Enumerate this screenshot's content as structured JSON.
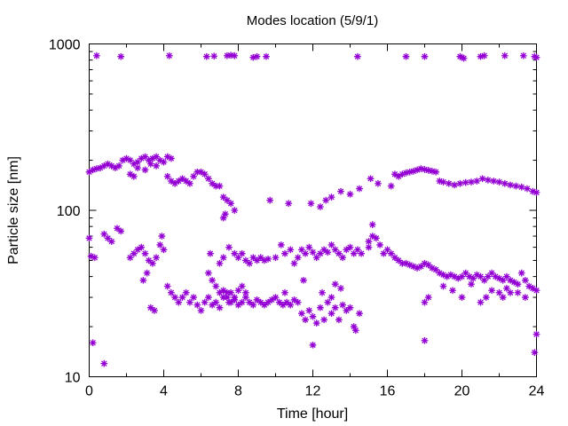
{
  "chart_data": {
    "type": "scatter",
    "title": "Modes location (5/9/1)",
    "xlabel": "Time [hour]",
    "ylabel": "Particle size [nm]",
    "xlim": [
      0,
      24
    ],
    "ylim": [
      10,
      1000
    ],
    "yscale": "log",
    "grid": false,
    "legend": "none",
    "marker": "star",
    "color": "#9400D3",
    "x_ticks": [
      0,
      4,
      8,
      12,
      16,
      20,
      24
    ],
    "x_tick_labels": [
      "0",
      "4",
      "8",
      "12",
      "16",
      "20",
      "24"
    ],
    "x_minor_ticks": [
      2,
      6,
      10,
      14,
      18,
      22
    ],
    "y_ticks": [
      10,
      100,
      1000
    ],
    "y_tick_labels": [
      "10",
      "100",
      "1000"
    ],
    "series": [
      {
        "points": [
          [
            0.4,
            850
          ],
          [
            1.7,
            840
          ],
          [
            4.3,
            850
          ],
          [
            6.3,
            840
          ],
          [
            6.7,
            845
          ],
          [
            7.4,
            850
          ],
          [
            7.6,
            855
          ],
          [
            7.8,
            850
          ],
          [
            8.8,
            830
          ],
          [
            9.0,
            840
          ],
          [
            9.5,
            840
          ],
          [
            14.4,
            840
          ],
          [
            17.0,
            840
          ],
          [
            18.0,
            840
          ],
          [
            19.9,
            840
          ],
          [
            20.0,
            830
          ],
          [
            20.1,
            820
          ],
          [
            21.0,
            840
          ],
          [
            21.2,
            850
          ],
          [
            22.3,
            850
          ],
          [
            23.3,
            850
          ],
          [
            23.9,
            840
          ],
          [
            24.0,
            830
          ],
          [
            0.0,
            170
          ],
          [
            0.2,
            175
          ],
          [
            0.4,
            178
          ],
          [
            0.6,
            180
          ],
          [
            0.8,
            185
          ],
          [
            1.0,
            190
          ],
          [
            1.2,
            185
          ],
          [
            1.4,
            180
          ],
          [
            1.6,
            185
          ],
          [
            1.8,
            200
          ],
          [
            2.0,
            205
          ],
          [
            2.2,
            200
          ],
          [
            2.4,
            190
          ],
          [
            2.6,
            195
          ],
          [
            2.8,
            205
          ],
          [
            3.0,
            210
          ],
          [
            3.2,
            200
          ],
          [
            3.4,
            205
          ],
          [
            3.6,
            210
          ],
          [
            3.8,
            200
          ],
          [
            4.0,
            195
          ],
          [
            4.2,
            210
          ],
          [
            4.4,
            205
          ],
          [
            2.2,
            165
          ],
          [
            2.4,
            160
          ],
          [
            2.6,
            180
          ],
          [
            3.0,
            175
          ],
          [
            3.3,
            190
          ],
          [
            3.6,
            185
          ],
          [
            4.2,
            160
          ],
          [
            4.4,
            150
          ],
          [
            4.6,
            145
          ],
          [
            4.8,
            150
          ],
          [
            5.0,
            155
          ],
          [
            5.2,
            150
          ],
          [
            5.4,
            145
          ],
          [
            5.6,
            160
          ],
          [
            5.8,
            170
          ],
          [
            6.0,
            170
          ],
          [
            6.2,
            165
          ],
          [
            6.4,
            155
          ],
          [
            6.6,
            145
          ],
          [
            6.8,
            140
          ],
          [
            7.0,
            140
          ],
          [
            7.2,
            120
          ],
          [
            7.4,
            115
          ],
          [
            7.6,
            110
          ],
          [
            7.8,
            100
          ],
          [
            7.3,
            95
          ],
          [
            7.2,
            90
          ],
          [
            9.7,
            115
          ],
          [
            10.7,
            110
          ],
          [
            11.9,
            110
          ],
          [
            12.4,
            105
          ],
          [
            12.7,
            115
          ],
          [
            13.0,
            120
          ],
          [
            13.5,
            130
          ],
          [
            14.0,
            125
          ],
          [
            14.5,
            135
          ],
          [
            15.1,
            155
          ],
          [
            15.5,
            145
          ],
          [
            16.2,
            140
          ],
          [
            16.4,
            165
          ],
          [
            16.6,
            160
          ],
          [
            16.8,
            165
          ],
          [
            17.0,
            168
          ],
          [
            17.2,
            170
          ],
          [
            17.4,
            172
          ],
          [
            17.6,
            175
          ],
          [
            17.8,
            178
          ],
          [
            18.0,
            176
          ],
          [
            18.2,
            174
          ],
          [
            18.4,
            172
          ],
          [
            18.6,
            170
          ],
          [
            18.8,
            150
          ],
          [
            19.0,
            148
          ],
          [
            19.3,
            145
          ],
          [
            19.6,
            142
          ],
          [
            19.9,
            145
          ],
          [
            20.2,
            147
          ],
          [
            20.5,
            148
          ],
          [
            20.8,
            150
          ],
          [
            21.1,
            155
          ],
          [
            21.4,
            152
          ],
          [
            21.7,
            150
          ],
          [
            22.0,
            148
          ],
          [
            22.3,
            145
          ],
          [
            22.6,
            142
          ],
          [
            22.9,
            140
          ],
          [
            23.2,
            138
          ],
          [
            23.5,
            135
          ],
          [
            23.8,
            130
          ],
          [
            24.0,
            128
          ],
          [
            0.0,
            68
          ],
          [
            0.1,
            53
          ],
          [
            0.3,
            52
          ],
          [
            0.8,
            72
          ],
          [
            1.0,
            68
          ],
          [
            1.2,
            65
          ],
          [
            1.5,
            78
          ],
          [
            1.7,
            75
          ],
          [
            2.2,
            52
          ],
          [
            2.4,
            55
          ],
          [
            2.6,
            58
          ],
          [
            2.8,
            60
          ],
          [
            3.0,
            55
          ],
          [
            3.2,
            50
          ],
          [
            3.4,
            48
          ],
          [
            3.6,
            52
          ],
          [
            3.8,
            62
          ],
          [
            3.9,
            70
          ],
          [
            4.0,
            58
          ],
          [
            3.1,
            42
          ],
          [
            2.9,
            38
          ],
          [
            3.3,
            26
          ],
          [
            3.5,
            25
          ],
          [
            4.2,
            35
          ],
          [
            4.4,
            32
          ],
          [
            4.6,
            30
          ],
          [
            4.8,
            28
          ],
          [
            5.0,
            30
          ],
          [
            5.2,
            32
          ],
          [
            5.4,
            28
          ],
          [
            5.6,
            30
          ],
          [
            5.8,
            27
          ],
          [
            6.0,
            25
          ],
          [
            6.2,
            28
          ],
          [
            6.4,
            30
          ],
          [
            6.6,
            27
          ],
          [
            6.8,
            28
          ],
          [
            7.0,
            26
          ],
          [
            7.2,
            30
          ],
          [
            7.4,
            32
          ],
          [
            7.6,
            28
          ],
          [
            7.8,
            29
          ],
          [
            8.0,
            27
          ],
          [
            8.2,
            28
          ],
          [
            8.4,
            30
          ],
          [
            8.6,
            28
          ],
          [
            8.8,
            27
          ],
          [
            9.0,
            29
          ],
          [
            9.2,
            28
          ],
          [
            9.4,
            27
          ],
          [
            9.6,
            28
          ],
          [
            9.8,
            29
          ],
          [
            10.0,
            30
          ],
          [
            10.2,
            28
          ],
          [
            10.4,
            27
          ],
          [
            10.6,
            28
          ],
          [
            10.8,
            27
          ],
          [
            11.0,
            29
          ],
          [
            11.2,
            28
          ],
          [
            11.4,
            24
          ],
          [
            11.6,
            22
          ],
          [
            11.8,
            25
          ],
          [
            12.0,
            23
          ],
          [
            12.2,
            21
          ],
          [
            12.4,
            26
          ],
          [
            12.6,
            22
          ],
          [
            12.8,
            28
          ],
          [
            13.0,
            24
          ],
          [
            13.2,
            26
          ],
          [
            13.4,
            22
          ],
          [
            13.6,
            27
          ],
          [
            13.8,
            25
          ],
          [
            14.0,
            26
          ],
          [
            14.2,
            20
          ],
          [
            14.5,
            24
          ],
          [
            14.3,
            19
          ],
          [
            12.0,
            15.5
          ],
          [
            6.4,
            42
          ],
          [
            6.6,
            38
          ],
          [
            6.8,
            35
          ],
          [
            7.0,
            32
          ],
          [
            7.2,
            33
          ],
          [
            7.4,
            30
          ],
          [
            7.6,
            32
          ],
          [
            7.8,
            30
          ],
          [
            8.0,
            33
          ],
          [
            8.2,
            35
          ],
          [
            8.4,
            32
          ],
          [
            7.5,
            28
          ],
          [
            10.5,
            32
          ],
          [
            11.5,
            38
          ],
          [
            12.5,
            32
          ],
          [
            13.0,
            30
          ],
          [
            13.2,
            36
          ],
          [
            13.5,
            34
          ],
          [
            6.5,
            55
          ],
          [
            7.0,
            48
          ],
          [
            7.2,
            52
          ],
          [
            7.5,
            60
          ],
          [
            7.8,
            55
          ],
          [
            8.0,
            52
          ],
          [
            8.2,
            55
          ],
          [
            8.4,
            50
          ],
          [
            8.6,
            48
          ],
          [
            8.8,
            52
          ],
          [
            9.0,
            50
          ],
          [
            9.2,
            52
          ],
          [
            9.4,
            50
          ],
          [
            9.6,
            51
          ],
          [
            10.0,
            52
          ],
          [
            10.3,
            62
          ],
          [
            10.5,
            55
          ],
          [
            10.8,
            58
          ],
          [
            11.0,
            48
          ],
          [
            11.2,
            52
          ],
          [
            11.4,
            58
          ],
          [
            11.6,
            55
          ],
          [
            11.8,
            60
          ],
          [
            12.0,
            56
          ],
          [
            12.2,
            52
          ],
          [
            12.4,
            55
          ],
          [
            12.6,
            58
          ],
          [
            12.8,
            56
          ],
          [
            13.0,
            62
          ],
          [
            13.2,
            58
          ],
          [
            13.4,
            55
          ],
          [
            13.6,
            52
          ],
          [
            13.8,
            58
          ],
          [
            14.0,
            60
          ],
          [
            14.2,
            55
          ],
          [
            14.4,
            58
          ],
          [
            14.6,
            55
          ],
          [
            15.0,
            65
          ],
          [
            15.2,
            70
          ],
          [
            15.4,
            68
          ],
          [
            15.6,
            62
          ],
          [
            15.8,
            55
          ],
          [
            15.0,
            60
          ],
          [
            15.2,
            82
          ],
          [
            16.0,
            58
          ],
          [
            16.2,
            55
          ],
          [
            16.4,
            52
          ],
          [
            16.6,
            50
          ],
          [
            16.8,
            48
          ],
          [
            17.0,
            48
          ],
          [
            17.2,
            47
          ],
          [
            17.4,
            46
          ],
          [
            17.6,
            45
          ],
          [
            17.8,
            46
          ],
          [
            18.0,
            48
          ],
          [
            18.2,
            47
          ],
          [
            18.4,
            45
          ],
          [
            18.6,
            44
          ],
          [
            18.8,
            42
          ],
          [
            19.0,
            41
          ],
          [
            19.2,
            40
          ],
          [
            19.4,
            41
          ],
          [
            19.6,
            40
          ],
          [
            19.8,
            39
          ],
          [
            20.0,
            40
          ],
          [
            20.2,
            42
          ],
          [
            20.4,
            40
          ],
          [
            20.6,
            39
          ],
          [
            20.8,
            41
          ],
          [
            21.0,
            40
          ],
          [
            21.2,
            38
          ],
          [
            21.4,
            40
          ],
          [
            21.6,
            42
          ],
          [
            21.8,
            40
          ],
          [
            22.0,
            39
          ],
          [
            22.2,
            38
          ],
          [
            22.4,
            40
          ],
          [
            22.6,
            38
          ],
          [
            22.8,
            37
          ],
          [
            23.0,
            36
          ],
          [
            23.2,
            42
          ],
          [
            23.4,
            38
          ],
          [
            23.6,
            35
          ],
          [
            23.8,
            34
          ],
          [
            24.0,
            33
          ],
          [
            18.0,
            28
          ],
          [
            18.2,
            30
          ],
          [
            19.0,
            35
          ],
          [
            19.5,
            33
          ],
          [
            20.0,
            30
          ],
          [
            20.5,
            36
          ],
          [
            21.0,
            28
          ],
          [
            21.3,
            30
          ],
          [
            21.6,
            33
          ],
          [
            22.0,
            32
          ],
          [
            22.2,
            30
          ],
          [
            22.4,
            34
          ],
          [
            22.6,
            32
          ],
          [
            23.0,
            32
          ],
          [
            23.4,
            30
          ],
          [
            0.2,
            16
          ],
          [
            0.8,
            12
          ],
          [
            18.0,
            16.5
          ],
          [
            24.0,
            18
          ],
          [
            23.9,
            14
          ]
        ]
      }
    ]
  }
}
